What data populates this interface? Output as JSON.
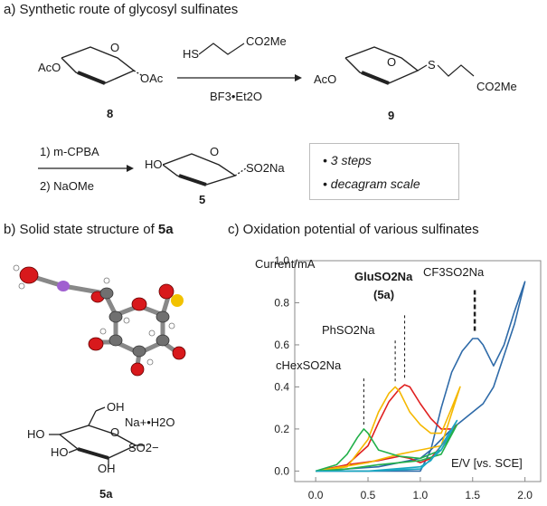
{
  "section_a": {
    "title": "a)  Synthetic route of glycosyl sulfinates",
    "reagent_thiol": "HS",
    "reagent_ester": "CO2Me",
    "reagent_catalyst": "BF3•Et2O",
    "compound_8_aco": "AcO",
    "compound_8_oac": "OAc",
    "compound_8_label": "8",
    "compound_9_aco": "AcO",
    "compound_9_s": "S",
    "compound_9_ester": "CO2Me",
    "compound_9_label": "9",
    "step1": "1) m-CPBA",
    "step2": "2) NaOMe",
    "compound_5_ho": "HO",
    "compound_5_group": "SO2Na",
    "compound_5_label": "5",
    "notes": [
      "• 3 steps",
      "• decagram scale"
    ]
  },
  "section_b": {
    "title_prefix": "b) Solid state structure of ",
    "title_bold": "5a",
    "na_label": "Na+•H2O",
    "oh_labels": [
      "OH",
      "HO",
      "HO",
      "OH"
    ],
    "so2_label": "SO2−",
    "compound_label": "5a"
  },
  "section_c": {
    "title": "c) Oxidation potential of various sulfinates",
    "ylabel": "Current/mA",
    "xlabel": "E/V  [vs. SCE]",
    "annotations": [
      "GluSO2Na",
      "(5a)",
      "CF3SO2Na",
      "PhSO2Na",
      "cHexSO2Na"
    ]
  },
  "chart_data": {
    "type": "line",
    "title": "c) Oxidation potential of various sulfinates",
    "xlabel": "E/V  [vs. SCE]",
    "ylabel": "Current/mA",
    "xlim": [
      -0.2,
      2.15
    ],
    "ylim": [
      -0.05,
      1.0
    ],
    "xticks": [
      0.0,
      0.5,
      1.0,
      1.5,
      2.0
    ],
    "yticks": [
      0.0,
      0.2,
      0.4,
      0.6,
      0.8,
      1.0
    ],
    "grid": false,
    "series": [
      {
        "name": "CF3SO2Na",
        "color": "#2e6aa8",
        "x": [
          0.0,
          0.6,
          1.0,
          1.1,
          1.2,
          1.3,
          1.4,
          1.5,
          1.55,
          1.6,
          1.7,
          1.8,
          1.9,
          2.0,
          1.9,
          1.8,
          1.7,
          1.6,
          1.5,
          1.4,
          1.3,
          1.2,
          1.1,
          1.0,
          0.6,
          0.0
        ],
        "y": [
          0.0,
          0.0,
          0.0,
          0.1,
          0.3,
          0.47,
          0.57,
          0.63,
          0.63,
          0.6,
          0.5,
          0.6,
          0.76,
          0.9,
          0.7,
          0.55,
          0.4,
          0.32,
          0.28,
          0.24,
          0.2,
          0.15,
          0.1,
          0.06,
          0.02,
          0.0
        ]
      },
      {
        "name": "GluSO2Na",
        "color": "#e02020",
        "x": [
          0.0,
          0.3,
          0.5,
          0.6,
          0.7,
          0.8,
          0.85,
          0.9,
          1.0,
          1.1,
          1.2,
          1.3,
          1.35,
          1.2,
          1.1,
          1.0,
          0.9,
          0.8,
          0.6,
          0.3,
          0.0
        ],
        "y": [
          0.0,
          0.03,
          0.12,
          0.23,
          0.33,
          0.39,
          0.41,
          0.4,
          0.32,
          0.25,
          0.2,
          0.2,
          0.22,
          0.12,
          0.06,
          0.04,
          0.06,
          0.07,
          0.05,
          0.03,
          0.0
        ]
      },
      {
        "name": "PhSO2Na",
        "color": "#f5b800",
        "x": [
          0.0,
          0.3,
          0.5,
          0.6,
          0.7,
          0.76,
          0.8,
          0.9,
          1.0,
          1.1,
          1.2,
          1.3,
          1.38,
          1.2,
          1.0,
          0.8,
          0.5,
          0.0
        ],
        "y": [
          0.0,
          0.02,
          0.15,
          0.28,
          0.37,
          0.4,
          0.38,
          0.28,
          0.22,
          0.18,
          0.18,
          0.3,
          0.4,
          0.12,
          0.1,
          0.08,
          0.04,
          0.0
        ]
      },
      {
        "name": "cHexSO2Na",
        "color": "#22b04a",
        "x": [
          0.0,
          0.2,
          0.3,
          0.4,
          0.46,
          0.5,
          0.6,
          0.8,
          1.0,
          1.2,
          1.3,
          1.35,
          1.2,
          1.0,
          0.6,
          0.3,
          0.0
        ],
        "y": [
          0.0,
          0.03,
          0.08,
          0.16,
          0.2,
          0.18,
          0.1,
          0.07,
          0.06,
          0.1,
          0.18,
          0.22,
          0.08,
          0.05,
          0.03,
          0.01,
          0.0
        ]
      },
      {
        "name": "cyan",
        "color": "#1aa7c2",
        "x": [
          0.0,
          0.5,
          1.0,
          1.1,
          1.2,
          1.3,
          1.35,
          1.2,
          1.0,
          0.5,
          0.0
        ],
        "y": [
          0.0,
          0.0,
          0.02,
          0.05,
          0.12,
          0.2,
          0.24,
          0.1,
          0.01,
          0.0,
          0.0
        ]
      }
    ],
    "peaks": [
      {
        "label": "CF3SO2Na",
        "x": 1.52,
        "style": "thick"
      },
      {
        "label": "GluSO2Na",
        "x": 0.85,
        "style": "dashed"
      },
      {
        "label": "PhSO2Na",
        "x": 0.76,
        "style": "dashed"
      },
      {
        "label": "cHexSO2Na",
        "x": 0.46,
        "style": "dashed"
      }
    ]
  }
}
